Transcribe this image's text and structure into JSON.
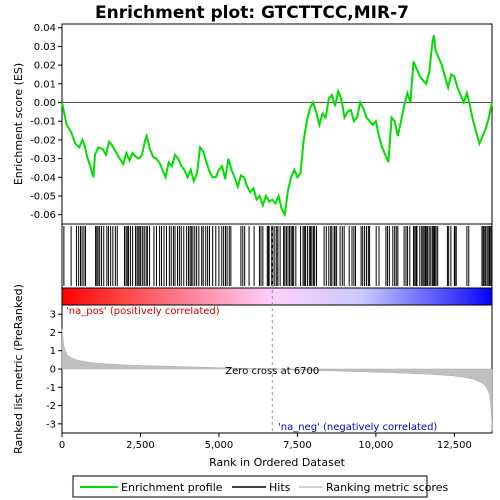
{
  "chart_data": {
    "type": "line",
    "title": "Enrichment plot: GTCTTCC,MIR-7",
    "top_panel": {
      "ylabel": "Enrichment score (ES)",
      "ylim": [
        -0.065,
        0.042
      ],
      "yticks": [
        0.04,
        0.03,
        0.02,
        0.01,
        0.0,
        -0.01,
        -0.02,
        -0.03,
        -0.04,
        -0.05,
        -0.06
      ],
      "ytick_labels": [
        "0.04",
        "0.03",
        "0.02",
        "0.01",
        "0.00",
        "-0.01",
        "-0.02",
        "-0.03",
        "-0.04",
        "-0.05",
        "-0.06"
      ],
      "series": [
        {
          "name": "Enrichment profile",
          "color": "#00dd00",
          "x": [
            0,
            150,
            300,
            420,
            550,
            650,
            720,
            820,
            900,
            1000,
            1050,
            1150,
            1300,
            1400,
            1500,
            1600,
            1700,
            1800,
            1950,
            2050,
            2150,
            2250,
            2350,
            2450,
            2550,
            2650,
            2700,
            2800,
            2900,
            3000,
            3100,
            3200,
            3300,
            3400,
            3500,
            3600,
            3700,
            3800,
            3900,
            4000,
            4100,
            4200,
            4300,
            4400,
            4500,
            4600,
            4700,
            4800,
            4900,
            5000,
            5100,
            5200,
            5300,
            5400,
            5500,
            5600,
            5700,
            5800,
            5900,
            6000,
            6100,
            6200,
            6300,
            6400,
            6500,
            6600,
            6700,
            6800,
            6900,
            7000,
            7100,
            7200,
            7300,
            7400,
            7500,
            7600,
            7700,
            7800,
            7900,
            8000,
            8100,
            8200,
            8300,
            8400,
            8500,
            8600,
            8700,
            8800,
            8900,
            9000,
            9100,
            9200,
            9300,
            9400,
            9500,
            9600,
            9700,
            9800,
            9900,
            10000,
            10100,
            10200,
            10300,
            10400,
            10500,
            10600,
            10700,
            10800,
            10900,
            11000,
            11100,
            11200,
            11300,
            11400,
            11500,
            11600,
            11700,
            11800,
            11850,
            11900,
            12000,
            12100,
            12200,
            12300,
            12400,
            12500,
            12600,
            12700,
            12800,
            12900,
            13000,
            13100,
            13200,
            13300,
            13400,
            13500,
            13600,
            13700
          ],
          "y": [
            0.0,
            -0.012,
            -0.016,
            -0.022,
            -0.024,
            -0.02,
            -0.023,
            -0.03,
            -0.034,
            -0.04,
            -0.028,
            -0.024,
            -0.025,
            -0.028,
            -0.021,
            -0.023,
            -0.026,
            -0.029,
            -0.033,
            -0.027,
            -0.031,
            -0.027,
            -0.029,
            -0.03,
            -0.028,
            -0.02,
            -0.018,
            -0.025,
            -0.029,
            -0.03,
            -0.032,
            -0.036,
            -0.04,
            -0.032,
            -0.034,
            -0.028,
            -0.03,
            -0.034,
            -0.036,
            -0.04,
            -0.036,
            -0.042,
            -0.038,
            -0.024,
            -0.026,
            -0.032,
            -0.037,
            -0.04,
            -0.04,
            -0.036,
            -0.034,
            -0.041,
            -0.03,
            -0.036,
            -0.04,
            -0.045,
            -0.039,
            -0.04,
            -0.045,
            -0.048,
            -0.046,
            -0.052,
            -0.05,
            -0.055,
            -0.05,
            -0.053,
            -0.052,
            -0.054,
            -0.05,
            -0.057,
            -0.06,
            -0.047,
            -0.04,
            -0.036,
            -0.04,
            -0.038,
            -0.02,
            -0.01,
            -0.003,
            0.0,
            -0.005,
            -0.012,
            -0.006,
            -0.008,
            0.002,
            0.004,
            -0.002,
            0.006,
            0.002,
            -0.008,
            -0.005,
            -0.004,
            -0.01,
            -0.008,
            0.0,
            -0.003,
            -0.008,
            -0.01,
            -0.012,
            -0.01,
            -0.018,
            -0.024,
            -0.028,
            -0.032,
            -0.008,
            -0.01,
            -0.018,
            -0.01,
            -0.002,
            0.005,
            0.0,
            0.022,
            0.018,
            0.014,
            0.012,
            0.01,
            0.016,
            0.032,
            0.036,
            0.028,
            0.024,
            0.02,
            0.014,
            0.008,
            0.015,
            0.014,
            0.008,
            0.004,
            0.0,
            0.005,
            -0.002,
            -0.01,
            -0.016,
            -0.022,
            -0.018,
            -0.014,
            -0.008,
            0.0
          ]
        }
      ]
    },
    "hits_panel": {
      "label": "Hits",
      "hit_ranks": [
        60,
        290,
        460,
        530,
        590,
        640,
        700,
        750,
        1070,
        1110,
        1150,
        1200,
        1260,
        1330,
        1430,
        1480,
        1550,
        1620,
        1700,
        1760,
        1990,
        2040,
        2080,
        2120,
        2180,
        2250,
        2340,
        2390,
        2430,
        2480,
        2510,
        2570,
        2620,
        2680,
        2720,
        2790,
        2930,
        3010,
        3110,
        3170,
        3250,
        3330,
        3420,
        3480,
        3550,
        3600,
        3680,
        3740,
        3800,
        3880,
        3970,
        4030,
        4080,
        4120,
        4170,
        4230,
        4290,
        4360,
        4450,
        4500,
        4580,
        4640,
        4700,
        4800,
        4900,
        5000,
        5090,
        5150,
        5210,
        5260,
        5330,
        5380,
        5700,
        5760,
        5820,
        5960,
        6120,
        6290,
        6340,
        6400,
        6540,
        6570,
        6600,
        6680,
        6700,
        6720,
        6780,
        6840,
        6880,
        6950,
        7060,
        7100,
        7150,
        7200,
        7250,
        7300,
        7340,
        7380,
        7450,
        7600,
        7680,
        7720,
        7760,
        7820,
        7880,
        7920,
        7960,
        8010,
        8050,
        8110,
        8350,
        8420,
        8500,
        8560,
        8600,
        8670,
        8700,
        8750,
        8860,
        8930,
        8990,
        9150,
        9240,
        9300,
        9350,
        9530,
        9580,
        9640,
        9700,
        9760,
        9800,
        10010,
        10100,
        10320,
        10370,
        10430,
        10540,
        10600,
        10650,
        10700,
        10900,
        10960,
        11010,
        11080,
        11200,
        11240,
        11280,
        11310,
        11400,
        11460,
        11500,
        11540,
        11580,
        11620,
        11650,
        11700,
        11750,
        11800,
        11840,
        11860,
        11880,
        11920,
        11970,
        12280,
        12320,
        12390,
        12500,
        12520,
        12560,
        12900,
        12960,
        13380,
        13420,
        13450,
        13490,
        13540,
        13580,
        13620,
        13660,
        13690
      ]
    },
    "colorbar": {
      "left_color": "#ff0000",
      "right_color": "#0000ff",
      "zero_color": "#ffffff"
    },
    "bottom_panel": {
      "ylabel": "Ranked list metric (PreRanked)",
      "xlabel": "Rank in Ordered Dataset",
      "ylim": [
        -3.5,
        3.5
      ],
      "yticks": [
        3,
        2,
        1,
        0,
        -1,
        -2,
        -3
      ],
      "ytick_labels": [
        "3",
        "2",
        "1",
        "0",
        "-1",
        "-2",
        "-3"
      ],
      "xlim": [
        0,
        13700
      ],
      "xticks": [
        0,
        2500,
        5000,
        7500,
        10000,
        12500
      ],
      "xtick_labels": [
        "0",
        "2,500",
        "5,000",
        "7,500",
        "10,000",
        "12,500"
      ],
      "metric_points": {
        "x": [
          0,
          50,
          150,
          300,
          500,
          800,
          1200,
          1800,
          2500,
          3500,
          4500,
          5500,
          6700,
          7500,
          8500,
          9500,
          10500,
          11500,
          12300,
          12800,
          13100,
          13300,
          13450,
          13550,
          13620,
          13660,
          13690,
          13700
        ],
        "y": [
          2.2,
          1.3,
          0.8,
          0.6,
          0.48,
          0.38,
          0.3,
          0.24,
          0.19,
          0.14,
          0.1,
          0.05,
          0.0,
          -0.05,
          -0.1,
          -0.15,
          -0.2,
          -0.27,
          -0.35,
          -0.45,
          -0.55,
          -0.7,
          -0.85,
          -1.1,
          -1.4,
          -1.9,
          -2.8,
          -3.4
        ]
      },
      "zero_cross_rank": 6700,
      "zero_cross_label": "Zero cross at 6700",
      "pos_label": "'na_pos' (positively correlated)",
      "neg_label": "'na_neg' (negatively correlated)",
      "pos_color": "#cc0000",
      "neg_color": "#0000cc"
    },
    "legend": [
      {
        "label": "Enrichment profile",
        "color": "#00dd00"
      },
      {
        "label": "Hits",
        "color": "#000000"
      },
      {
        "label": "Ranking metric scores",
        "color": "#c0c0c0"
      }
    ]
  }
}
